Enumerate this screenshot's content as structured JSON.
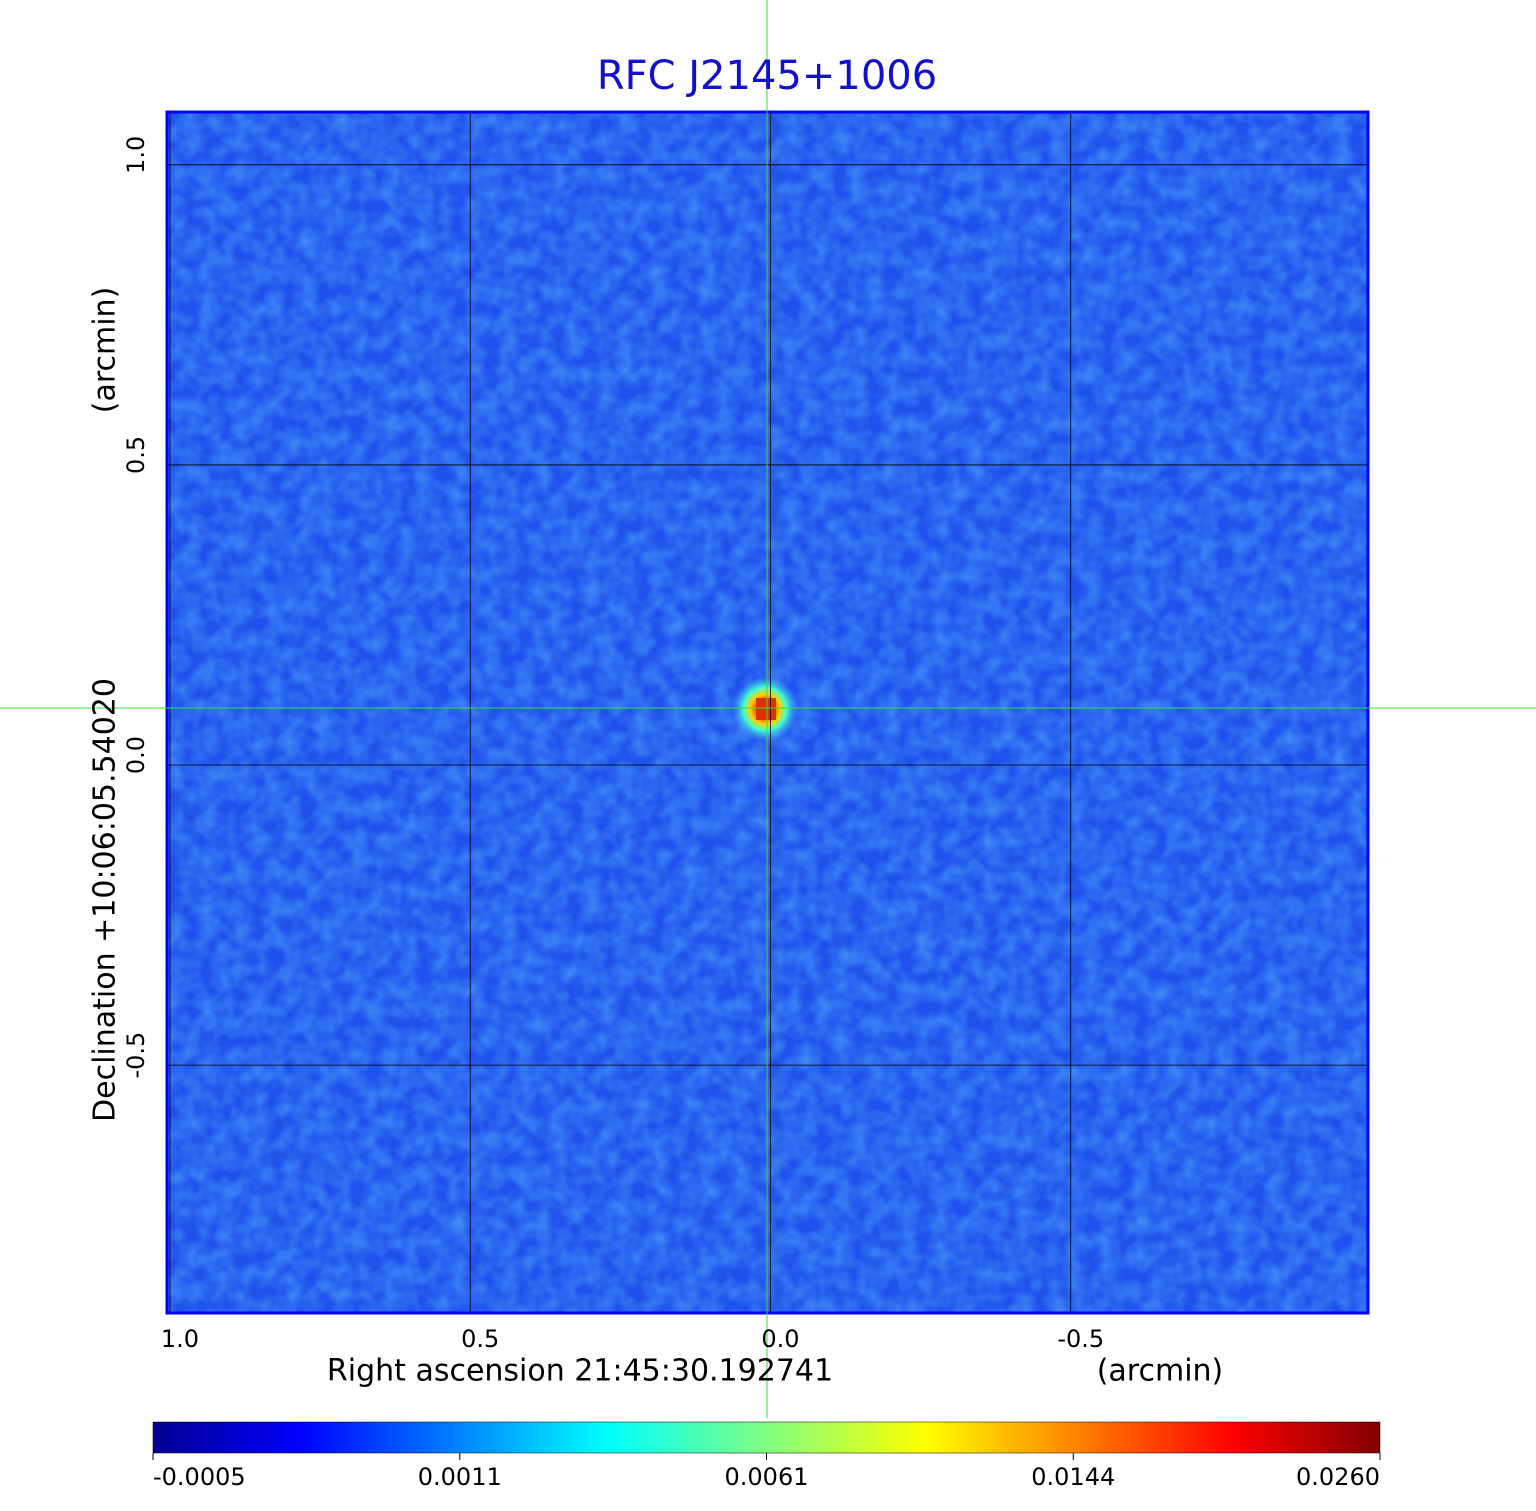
{
  "chart_data": {
    "type": "image",
    "title": "RFC J2145+1006",
    "x_label": "Right ascension  21:45:30.192741",
    "x_unit": "(arcmin)",
    "y_label": "Declination  +10:06:05.54020",
    "y_unit": "(arcmin)",
    "xlim": [
      1.005,
      -0.995
    ],
    "ylim": [
      -0.913,
      1.088
    ],
    "xticks": [
      {
        "value": 1,
        "label": "1.0"
      },
      {
        "value": 0.5,
        "label": "0.5"
      },
      {
        "value": 0,
        "label": "0.0"
      },
      {
        "value": -0.5,
        "label": "-0.5"
      }
    ],
    "yticks": [
      {
        "value": 1,
        "label": "1.0"
      },
      {
        "value": 0.5,
        "label": "0.5"
      },
      {
        "value": 0,
        "label": "0.0"
      },
      {
        "value": -0.5,
        "label": "-0.5"
      }
    ],
    "grid": true,
    "colorbar_ticks": [
      -0.0005,
      0.0011,
      0.0061,
      0.0144,
      {
        "value": 0.026,
        "label": "0.0260"
      }
    ]
  }
}
